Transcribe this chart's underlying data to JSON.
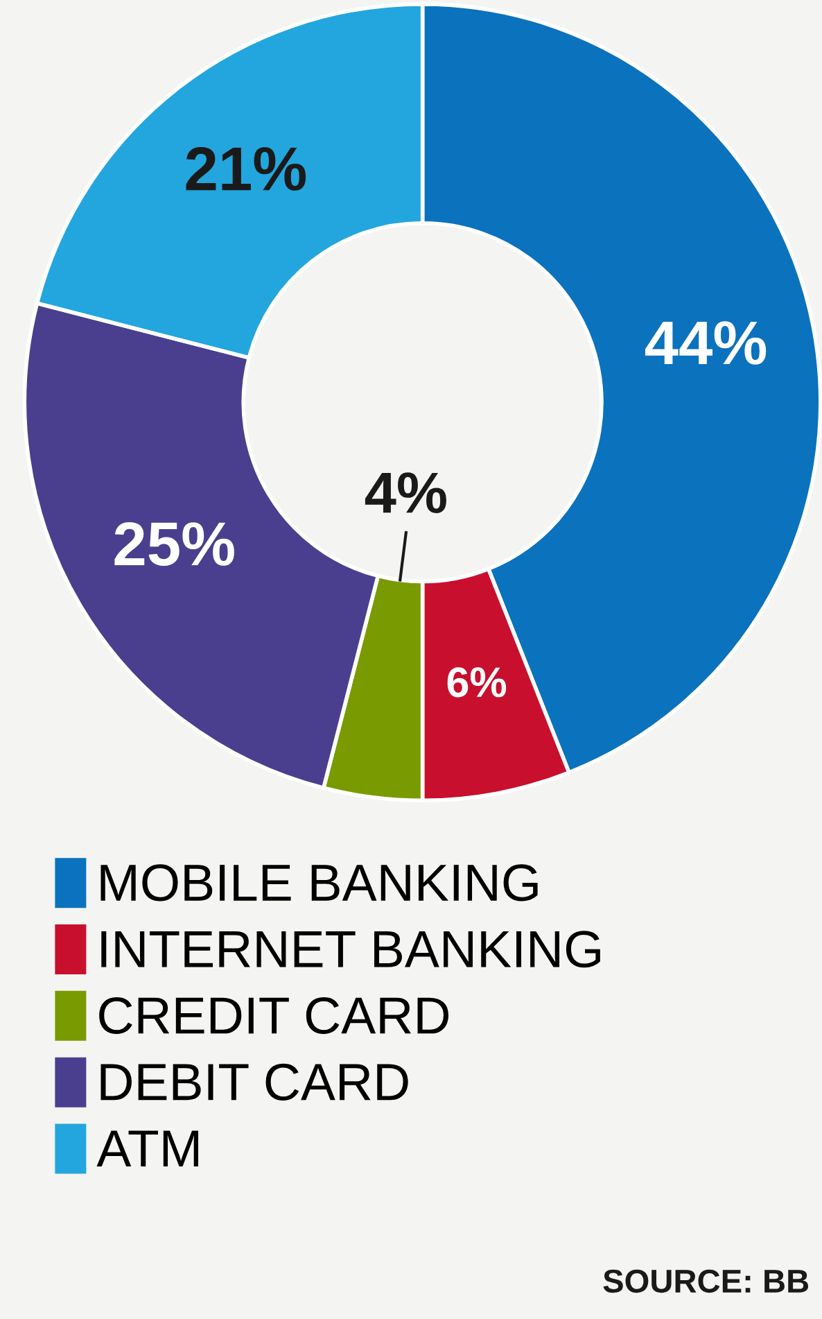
{
  "chart_data": {
    "type": "donut",
    "categories": [
      "MOBILE BANKING",
      "INTERNET BANKING",
      "CREDIT CARD",
      "DEBIT CARD",
      "ATM"
    ],
    "values": [
      44,
      6,
      4,
      25,
      21
    ],
    "colors": [
      "#0b72bd",
      "#c8102e",
      "#7a9a01",
      "#4a3f8e",
      "#22a6dd"
    ],
    "value_labels": [
      "44%",
      "6%",
      "4%",
      "25%",
      "21%"
    ],
    "legend": "bottom",
    "annotations": [
      "SOURCE: BB"
    ]
  }
}
